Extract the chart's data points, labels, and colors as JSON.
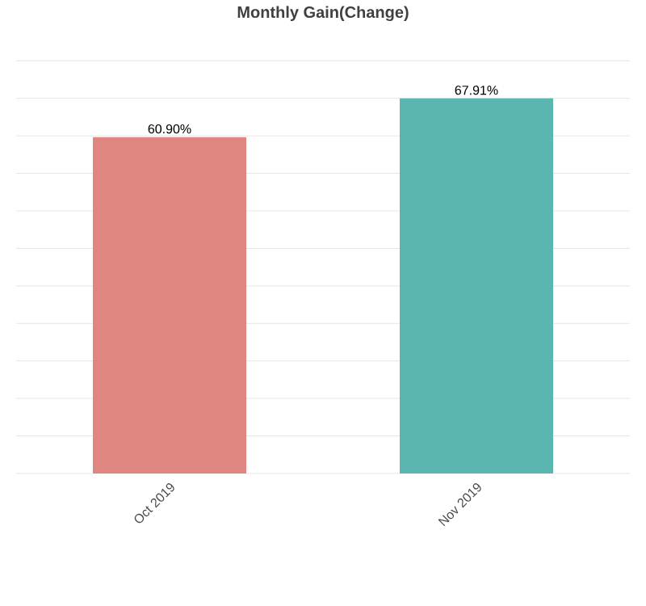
{
  "chart_data": {
    "type": "bar",
    "title": "Monthly Gain(Change)",
    "categories": [
      "Oct 2019",
      "Nov 2019"
    ],
    "values": [
      60.9,
      67.91
    ],
    "colors": [
      "#e08680",
      "#5bb5b0"
    ],
    "value_labels": [
      "60.90%",
      "67.91%"
    ],
    "grid": "y"
  }
}
